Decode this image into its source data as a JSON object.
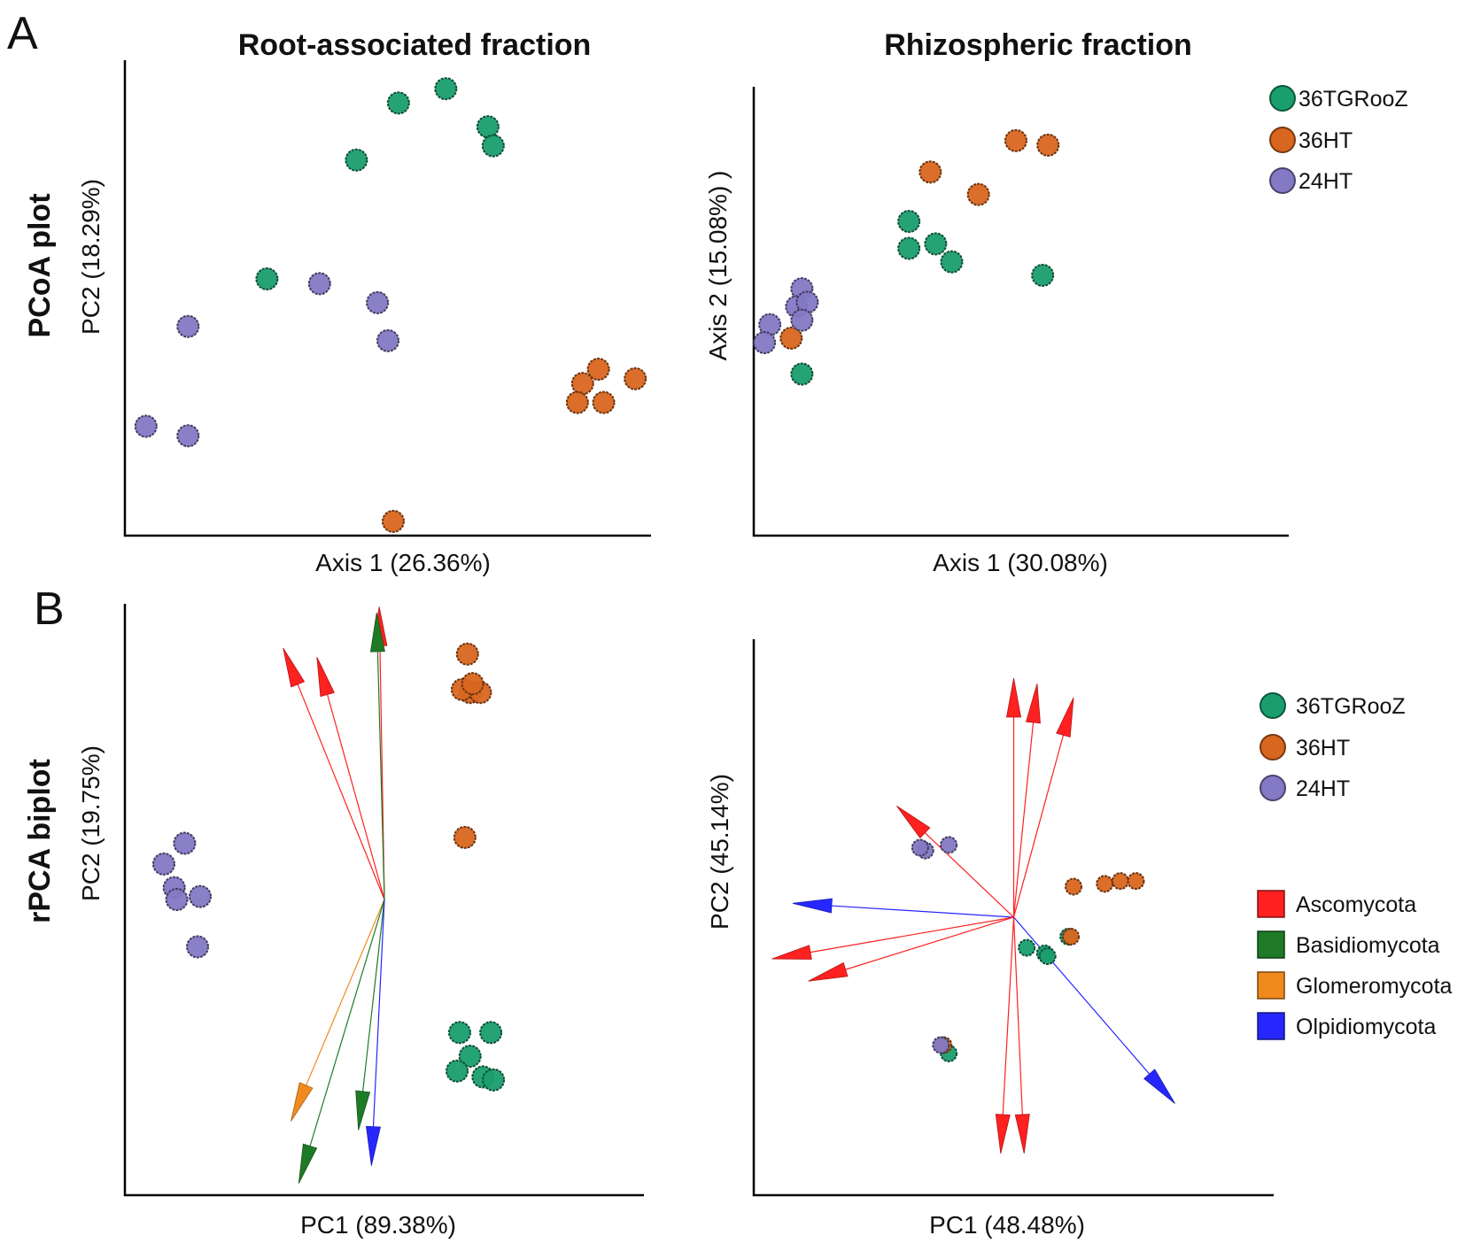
{
  "figure": {
    "panel_labels": [
      "A",
      "B"
    ],
    "column_titles": [
      "Root-associated fraction",
      "Rhizospheric fraction"
    ],
    "row_titles": [
      "PCoA plot",
      "rPCA biplot"
    ]
  },
  "colors": {
    "36TGRooZ": "#1a9e6e",
    "36HT": "#d9661f",
    "24HT": "#8479c4",
    "Ascomycota": "#ff2020",
    "Basidiomycota": "#1e7a26",
    "Glomeromycota": "#f08a1c",
    "Olpidiomycota": "#2626ff"
  },
  "legends": {
    "groups": [
      "36TGRooZ",
      "36HT",
      "24HT"
    ],
    "phyla": [
      "Ascomycota",
      "Basidiomycota",
      "Glomeromycota",
      "Olpidiomycota"
    ]
  },
  "chart_data": [
    {
      "id": "pcoa-root",
      "type": "scatter",
      "title": "Root-associated fraction",
      "row": "PCoA plot",
      "xlabel": "Axis 1 (26.36%)",
      "ylabel": "PC2 (18.29%)",
      "xlim": [
        0,
        100
      ],
      "ylim": [
        0,
        100
      ],
      "series": [
        {
          "name": "36TGRooZ",
          "points": [
            [
              52,
              91
            ],
            [
              61,
              94
            ],
            [
              69,
              86
            ],
            [
              70,
              82
            ],
            [
              44,
              79
            ],
            [
              27,
              54
            ]
          ]
        },
        {
          "name": "36HT",
          "points": [
            [
              90,
              35
            ],
            [
              87,
              32
            ],
            [
              91,
              28
            ],
            [
              86,
              28
            ],
            [
              97,
              33
            ],
            [
              51,
              3
            ]
          ]
        },
        {
          "name": "24HT",
          "points": [
            [
              12,
              44
            ],
            [
              37,
              53
            ],
            [
              48,
              49
            ],
            [
              50,
              41
            ],
            [
              4,
              23
            ],
            [
              12,
              21
            ]
          ]
        }
      ]
    },
    {
      "id": "pcoa-rhizo",
      "type": "scatter",
      "title": "Rhizospheric fraction",
      "row": "PCoA plot",
      "xlabel": "Axis 1 (30.08%)",
      "ylabel": "Axis 2 (15.08%) )",
      "xlim": [
        0,
        100
      ],
      "ylim": [
        0,
        100
      ],
      "series": [
        {
          "name": "36TGRooZ",
          "points": [
            [
              29,
              70
            ],
            [
              29,
              64
            ],
            [
              34,
              65
            ],
            [
              37,
              61
            ],
            [
              54,
              58
            ],
            [
              9,
              36
            ]
          ]
        },
        {
          "name": "36HT",
          "points": [
            [
              49,
              88
            ],
            [
              55,
              87
            ],
            [
              33,
              81
            ],
            [
              42,
              76
            ],
            [
              7,
              44
            ]
          ]
        },
        {
          "name": "24HT",
          "points": [
            [
              9,
              55
            ],
            [
              8,
              51
            ],
            [
              10,
              52
            ],
            [
              9,
              48
            ],
            [
              3,
              47
            ],
            [
              2,
              43
            ]
          ]
        }
      ]
    },
    {
      "id": "rpca-root",
      "type": "scatter",
      "title": "Root-associated fraction",
      "row": "rPCA biplot",
      "xlabel": "PC1 (89.38%)",
      "ylabel": "PC2 (19.75%)",
      "xlim": [
        -100,
        100
      ],
      "ylim": [
        -100,
        100
      ],
      "origin": [
        0,
        0
      ],
      "series": [
        {
          "name": "36TGRooZ",
          "points": [
            [
              29,
              -45
            ],
            [
              41,
              -45
            ],
            [
              33,
              -53
            ],
            [
              28,
              -58
            ],
            [
              38,
              -60
            ],
            [
              42,
              -61
            ]
          ]
        },
        {
          "name": "36HT",
          "points": [
            [
              32,
              83
            ],
            [
              33,
              70
            ],
            [
              37,
              70
            ],
            [
              30,
              71
            ],
            [
              34,
              73
            ],
            [
              31,
              21
            ]
          ]
        },
        {
          "name": "24HT",
          "points": [
            [
              -77,
              19
            ],
            [
              -85,
              12
            ],
            [
              -81,
              4
            ],
            [
              -71,
              1
            ],
            [
              -80,
              0
            ],
            [
              -72,
              -16
            ]
          ]
        }
      ],
      "arrows": [
        {
          "phylum": "Ascomycota",
          "end": [
            -39,
            85
          ]
        },
        {
          "phylum": "Ascomycota",
          "end": [
            -26,
            82
          ]
        },
        {
          "phylum": "Ascomycota",
          "end": [
            -2,
            99
          ]
        },
        {
          "phylum": "Basidiomycota",
          "end": [
            -3,
            97
          ]
        },
        {
          "phylum": "Glomeromycota",
          "end": [
            -36,
            -75
          ]
        },
        {
          "phylum": "Basidiomycota",
          "end": [
            -33,
            -96
          ]
        },
        {
          "phylum": "Basidiomycota",
          "end": [
            -10,
            -78
          ]
        },
        {
          "phylum": "Olpidiomycota",
          "end": [
            -5,
            -90
          ]
        }
      ]
    },
    {
      "id": "rpca-rhizo",
      "type": "scatter",
      "title": "Rhizospheric fraction",
      "row": "rPCA biplot",
      "xlabel": "PC1 (48.48%)",
      "ylabel": "PC2 (45.14%)",
      "xlim": [
        -100,
        100
      ],
      "ylim": [
        -100,
        100
      ],
      "origin": [
        0,
        0
      ],
      "series": [
        {
          "name": "36TGRooZ",
          "points": [
            [
              5,
              -11
            ],
            [
              12,
              -13
            ],
            [
              13,
              -14
            ],
            [
              21,
              -7
            ],
            [
              -25,
              -49
            ]
          ]
        },
        {
          "name": "36HT",
          "points": [
            [
              23,
              11
            ],
            [
              35,
              12
            ],
            [
              41,
              13
            ],
            [
              47,
              13
            ],
            [
              22,
              -7
            ],
            [
              -27,
              -46
            ]
          ]
        },
        {
          "name": "24HT",
          "points": [
            [
              -34,
              24
            ],
            [
              -36,
              25
            ],
            [
              -25,
              26
            ],
            [
              -28,
              -46
            ]
          ]
        }
      ],
      "arrows": [
        {
          "phylum": "Ascomycota",
          "end": [
            0,
            86
          ]
        },
        {
          "phylum": "Ascomycota",
          "end": [
            9,
            84
          ]
        },
        {
          "phylum": "Ascomycota",
          "end": [
            23,
            79
          ]
        },
        {
          "phylum": "Ascomycota",
          "end": [
            -45,
            40
          ]
        },
        {
          "phylum": "Olpidiomycota",
          "end": [
            -85,
            5
          ]
        },
        {
          "phylum": "Ascomycota",
          "end": [
            -93,
            -15
          ]
        },
        {
          "phylum": "Ascomycota",
          "end": [
            -79,
            -23
          ]
        },
        {
          "phylum": "Olpidiomycota",
          "end": [
            62,
            -67
          ]
        },
        {
          "phylum": "Ascomycota",
          "end": [
            -5,
            -85
          ]
        },
        {
          "phylum": "Ascomycota",
          "end": [
            4,
            -85
          ]
        }
      ]
    }
  ]
}
